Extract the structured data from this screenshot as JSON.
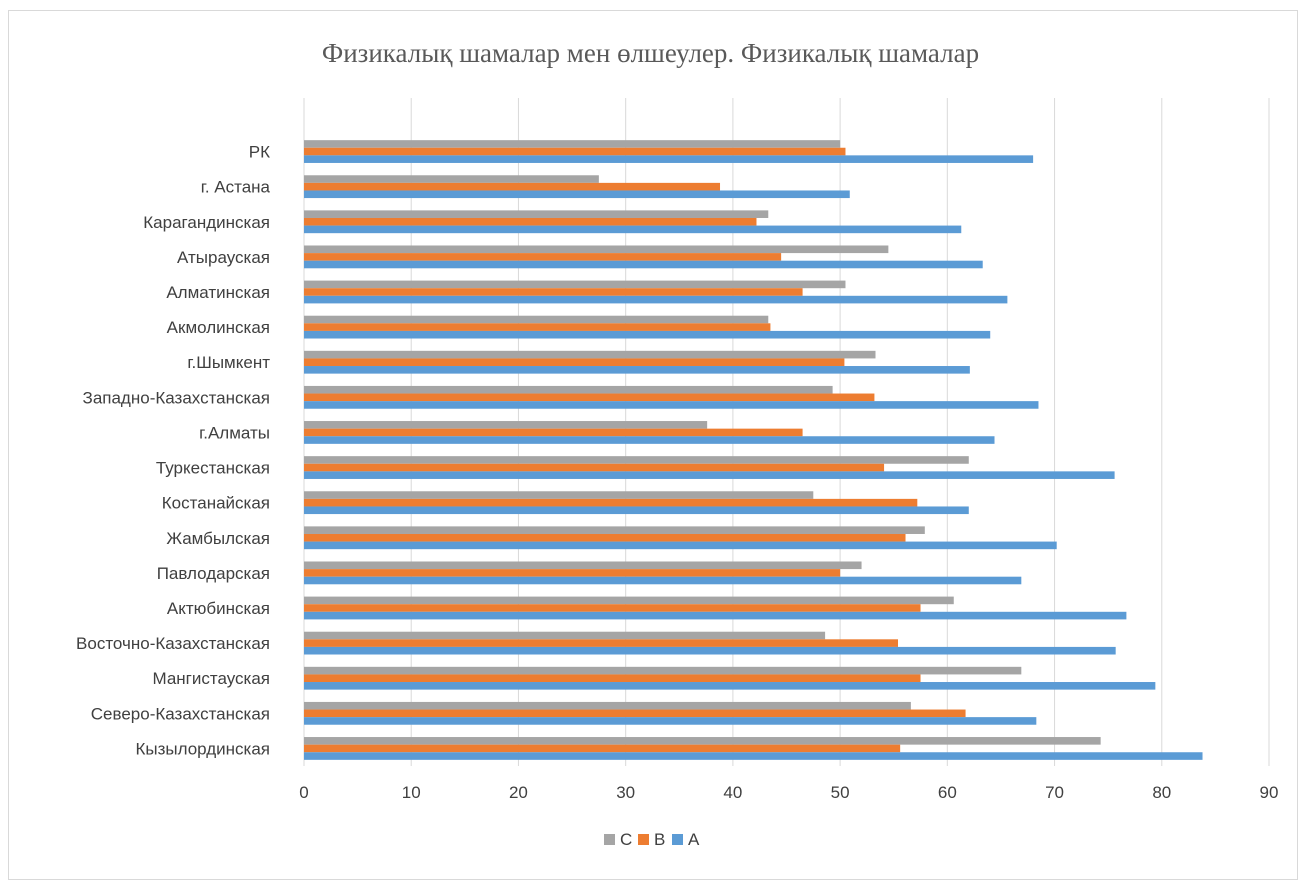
{
  "chart_data": {
    "type": "bar",
    "orientation": "horizontal",
    "title": "Физикалық шамалар мен өлшеулер. Физикалық шамалар",
    "xlabel": "",
    "ylabel": "",
    "xlim": [
      0,
      90
    ],
    "ticks": [
      0,
      10,
      20,
      30,
      40,
      50,
      60,
      70,
      80,
      90
    ],
    "tick_labels": [
      "0",
      "10",
      "20",
      "30",
      "40",
      "50",
      "60",
      "70",
      "80",
      "90"
    ],
    "grid": true,
    "legend_position": "bottom",
    "legend": [
      "C",
      "B",
      "A"
    ],
    "categories": [
      "РК",
      "г. Астана",
      "Карагандинская",
      "Атырауская",
      "Алматинская",
      "Акмолинская",
      "г.Шымкент",
      "Западно-Казахстанская",
      "г.Алматы",
      "Туркестанская",
      "Костанайская",
      "Жамбылская",
      "Павлодарская",
      "Актюбинская",
      "Восточно-Казахстанская",
      "Мангистауская",
      "Северо-Казахстанская",
      "Кызылординская"
    ],
    "series": [
      {
        "name": "C",
        "color": "#a5a5a5",
        "values": [
          50.0,
          27.5,
          43.3,
          54.5,
          50.5,
          43.3,
          53.3,
          49.3,
          37.6,
          62.0,
          47.5,
          57.9,
          52.0,
          60.6,
          48.6,
          66.9,
          56.6,
          74.3
        ]
      },
      {
        "name": "B",
        "color": "#ed7d31",
        "values": [
          50.5,
          38.8,
          42.2,
          44.5,
          46.5,
          43.5,
          50.4,
          53.2,
          46.5,
          54.1,
          57.2,
          56.1,
          50.0,
          57.5,
          55.4,
          57.5,
          61.7,
          55.6
        ]
      },
      {
        "name": "A",
        "color": "#5b9bd5",
        "values": [
          68.0,
          50.9,
          61.3,
          63.3,
          65.6,
          64.0,
          62.1,
          68.5,
          64.4,
          75.6,
          62.0,
          70.2,
          66.9,
          76.7,
          75.7,
          79.4,
          68.3,
          83.8
        ]
      }
    ]
  }
}
